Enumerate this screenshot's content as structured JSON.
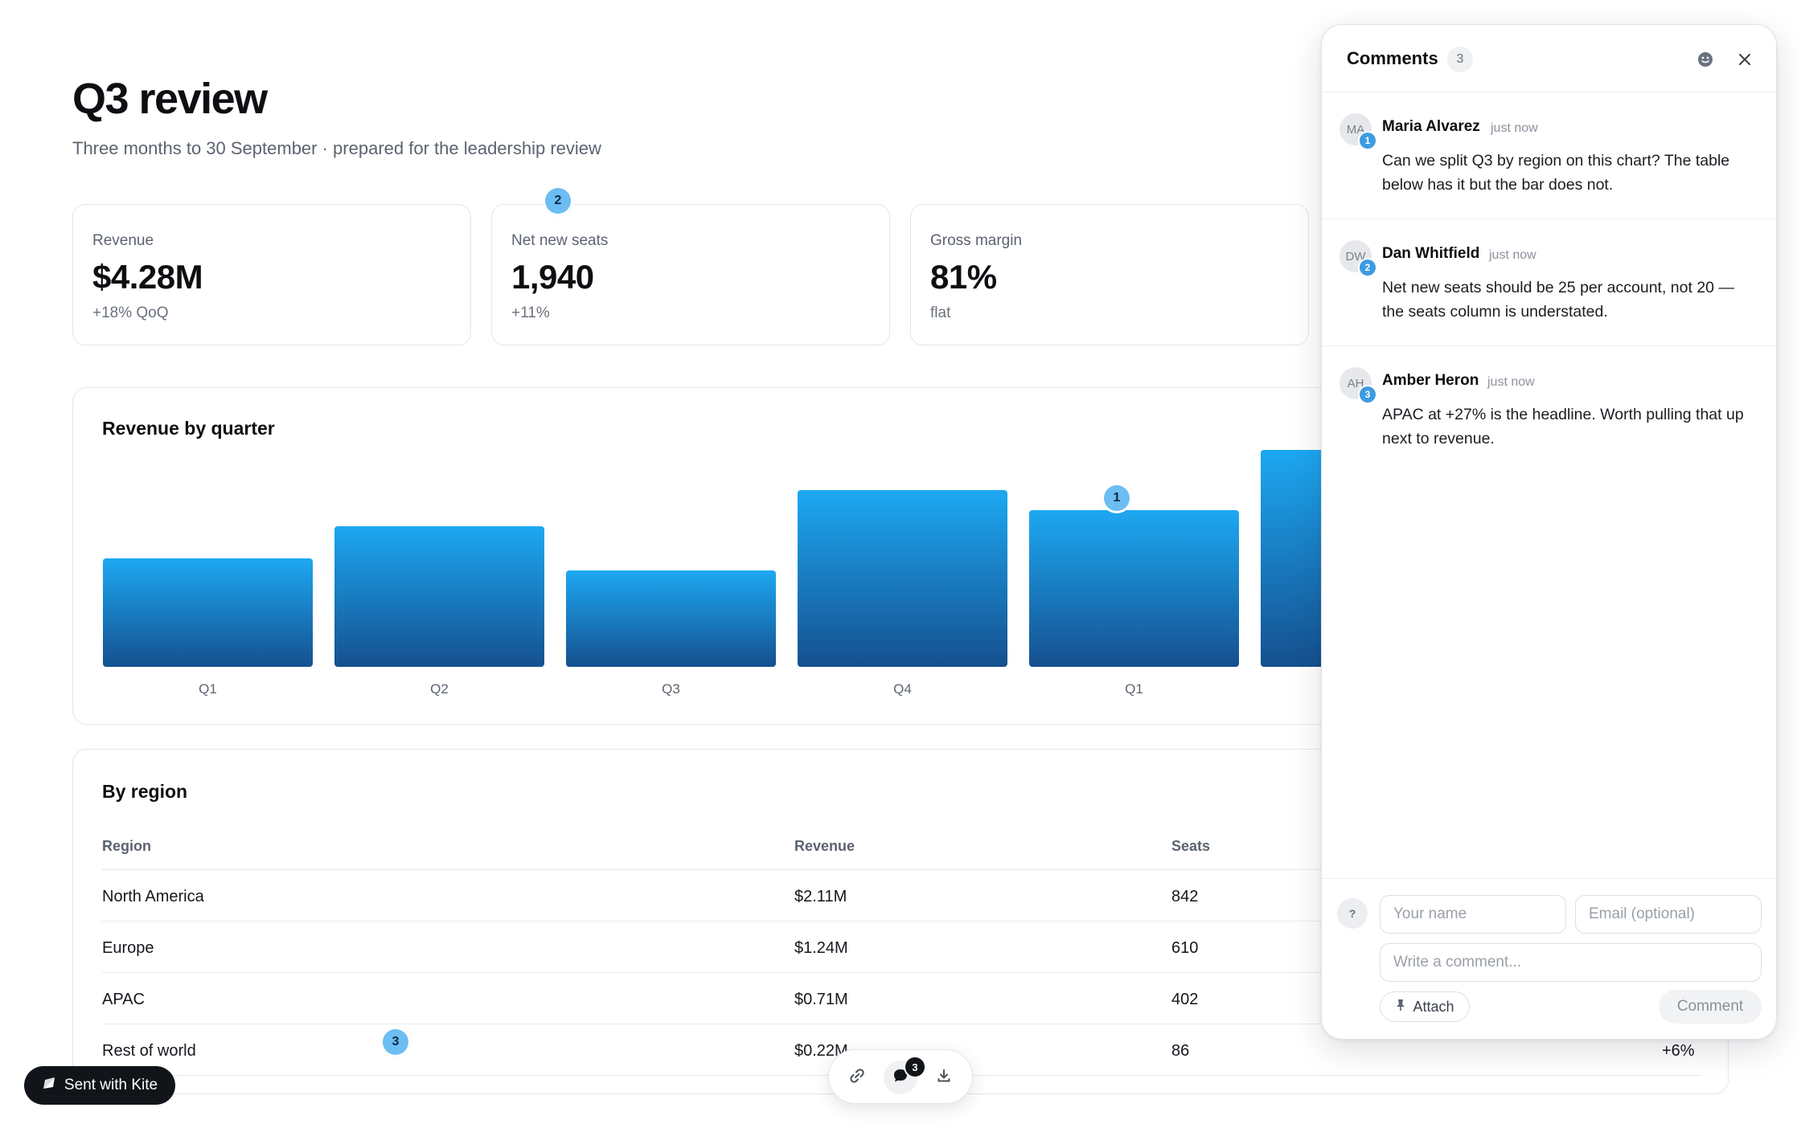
{
  "header": {
    "title": "Q3 review",
    "subtitle": "Three months to 30 September · prepared for the leadership review"
  },
  "kpis": [
    {
      "label": "Revenue",
      "value": "$4.28M",
      "delta": "+18% QoQ"
    },
    {
      "label": "Net new seats",
      "value": "1,940",
      "delta": "+11%"
    },
    {
      "label": "Gross margin",
      "value": "81%",
      "delta": "flat"
    }
  ],
  "pins": {
    "chart_pin": "1",
    "kpi_pin": "2",
    "table_pin": "3"
  },
  "chart": {
    "title": "Revenue by quarter"
  },
  "chart_data": {
    "type": "bar",
    "title": "Revenue by quarter",
    "categories": [
      "Q1",
      "Q2",
      "Q3",
      "Q4",
      "Q1",
      ""
    ],
    "values": [
      2.7,
      3.5,
      2.4,
      4.4,
      3.9,
      5.4
    ],
    "value_note_hidden_behind_panel": "sixth bar partially covered by comments panel",
    "ylim": [
      0,
      6
    ],
    "grid": false,
    "bar_colors": {
      "top": "#1da8f2",
      "bottom": "#15508f"
    }
  },
  "table": {
    "title": "By region",
    "columns": [
      "Region",
      "Revenue",
      "Seats"
    ],
    "rows": [
      {
        "region": "North America",
        "revenue": "$2.11M",
        "seats": "842",
        "extra": ""
      },
      {
        "region": "Europe",
        "revenue": "$1.24M",
        "seats": "610",
        "extra": ""
      },
      {
        "region": "APAC",
        "revenue": "$0.71M",
        "seats": "402",
        "extra": ""
      },
      {
        "region": "Rest of world",
        "revenue": "$0.22M",
        "seats": "86",
        "extra": "+6%"
      }
    ]
  },
  "comments_panel": {
    "title": "Comments",
    "count": "3",
    "items": [
      {
        "initials": "MA",
        "num": "1",
        "author": "Maria Alvarez",
        "time": "just now",
        "body": "Can we split Q3 by region on this chart? The table below has it but the bar does not."
      },
      {
        "initials": "DW",
        "num": "2",
        "author": "Dan Whitfield",
        "time": "just now",
        "body": "Net new seats should be 25 per account, not 20 — the seats column is understated."
      },
      {
        "initials": "AH",
        "num": "3",
        "author": "Amber Heron",
        "time": "just now",
        "body": "APAC at +27% is the headline. Worth pulling that up next to revenue."
      }
    ],
    "composer": {
      "avatar": "?",
      "name_placeholder": "Your name",
      "email_placeholder": "Email (optional)",
      "comment_placeholder": "Write a comment...",
      "attach_label": "Attach",
      "submit_label": "Comment"
    }
  },
  "dock": {
    "comments_count": "3"
  },
  "footer": {
    "sent_with": "Sent with Kite"
  },
  "colors": {
    "accent": "#6cbdf2",
    "avatar_badge": "#3d9be0",
    "dark": "#111418"
  }
}
